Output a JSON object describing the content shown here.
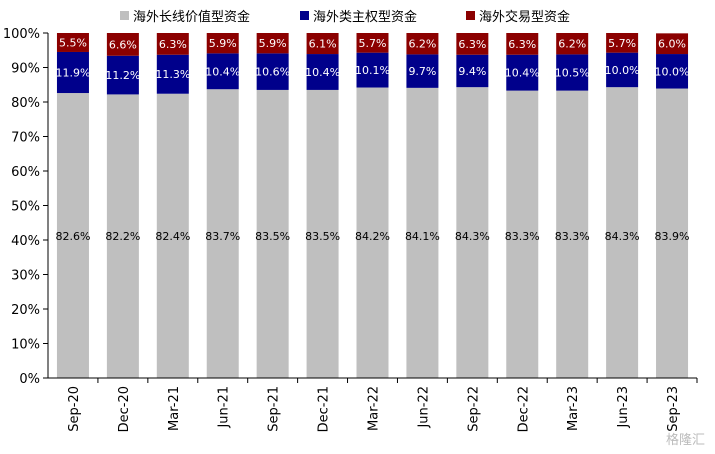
{
  "legend": [
    {
      "label": "海外长线价值型资金",
      "color": "#BFBFBF"
    },
    {
      "label": "海外类主权型资金",
      "color": "#00008B"
    },
    {
      "label": "海外交易型资金",
      "color": "#8B0000"
    }
  ],
  "watermark": "格隆汇",
  "chart_data": {
    "type": "bar",
    "stacked": true,
    "categories": [
      "Sep-20",
      "Dec-20",
      "Mar-21",
      "Jun-21",
      "Sep-21",
      "Dec-21",
      "Mar-22",
      "Jun-22",
      "Sep-22",
      "Dec-22",
      "Mar-23",
      "Jun-23",
      "Sep-23"
    ],
    "series": [
      {
        "name": "海外长线价值型资金",
        "color": "#BFBFBF",
        "values": [
          82.6,
          82.2,
          82.4,
          83.7,
          83.5,
          83.5,
          84.2,
          84.1,
          84.3,
          83.3,
          83.3,
          84.3,
          83.9
        ],
        "labels": [
          "82.6%",
          "82.2%",
          "82.4%",
          "83.7%",
          "83.5%",
          "83.5%",
          "84.2%",
          "84.1%",
          "84.3%",
          "83.3%",
          "83.3%",
          "84.3%",
          "83.9%"
        ]
      },
      {
        "name": "海外类主权型资金",
        "color": "#00008B",
        "values": [
          11.9,
          11.2,
          11.3,
          10.4,
          10.6,
          10.4,
          10.1,
          9.7,
          9.4,
          10.4,
          10.5,
          10.0,
          10.0
        ],
        "labels": [
          "11.9%",
          "11.2%",
          "11.3%",
          "10.4%",
          "10.6%",
          "10.4%",
          "10.1%",
          "9.7%",
          "9.4%",
          "10.4%",
          "10.5%",
          "10.0%",
          "10.0%"
        ]
      },
      {
        "name": "海外交易型资金",
        "color": "#8B0000",
        "values": [
          5.5,
          6.6,
          6.3,
          5.9,
          5.9,
          6.1,
          5.7,
          6.2,
          6.3,
          6.3,
          6.2,
          5.7,
          6.0
        ],
        "labels": [
          "5.5%",
          "6.6%",
          "6.3%",
          "5.9%",
          "5.9%",
          "6.1%",
          "5.7%",
          "6.2%",
          "6.3%",
          "6.3%",
          "6.2%",
          "5.7%",
          "6.0%"
        ]
      }
    ],
    "ylim": [
      0,
      100
    ],
    "yticks": [
      "0%",
      "10%",
      "20%",
      "30%",
      "40%",
      "50%",
      "60%",
      "70%",
      "80%",
      "90%",
      "100%"
    ],
    "grid": false,
    "legend_position": "top"
  }
}
